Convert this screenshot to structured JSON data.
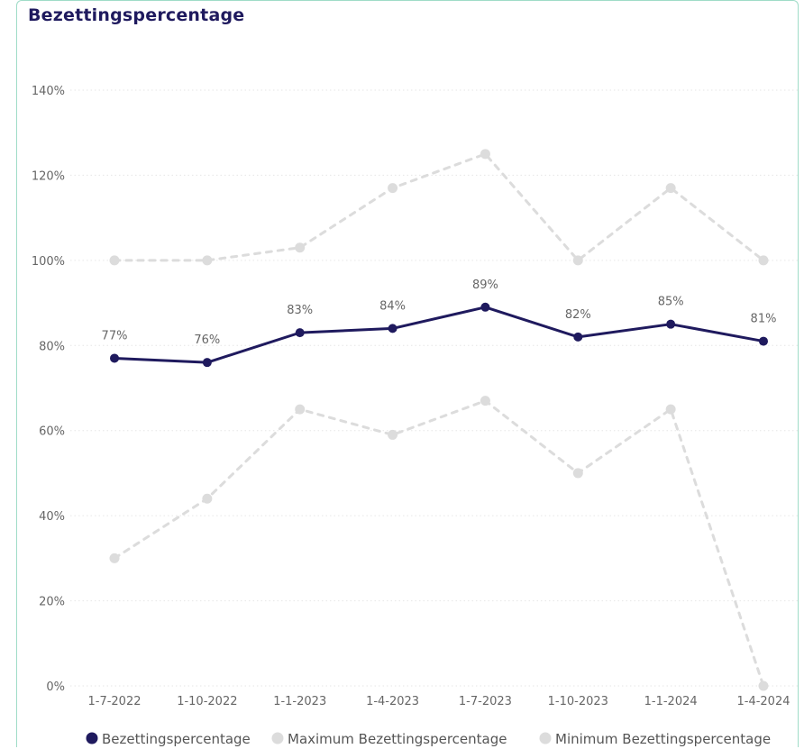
{
  "chart_data": {
    "type": "line",
    "title": "Bezettingspercentage",
    "xlabel": "",
    "ylabel": "",
    "categories": [
      "1-7-2022",
      "1-10-2022",
      "1-1-2023",
      "1-4-2023",
      "1-7-2023",
      "1-10-2023",
      "1-1-2024",
      "1-4-2024"
    ],
    "ylim": [
      0,
      140
    ],
    "yticks": [
      {
        "value": 0,
        "label": "0%"
      },
      {
        "value": 20,
        "label": "20%"
      },
      {
        "value": 40,
        "label": "40%"
      },
      {
        "value": 60,
        "label": "60%"
      },
      {
        "value": 80,
        "label": "80%"
      },
      {
        "value": 100,
        "label": "100%"
      },
      {
        "value": 120,
        "label": "120%"
      },
      {
        "value": 140,
        "label": "140%"
      }
    ],
    "grid": true,
    "legend_position": "bottom-left",
    "series": [
      {
        "name": "Bezettingspercentage",
        "color": "#1f1a5e",
        "style": "solid",
        "values": [
          77,
          76,
          83,
          84,
          89,
          82,
          85,
          81
        ],
        "data_labels": [
          "77%",
          "76%",
          "83%",
          "84%",
          "89%",
          "82%",
          "85%",
          "81%"
        ]
      },
      {
        "name": "Maximum Bezettingspercentage",
        "color": "#dcdcdc",
        "style": "dashed",
        "values": [
          100,
          100,
          103,
          117,
          125,
          100,
          117,
          100
        ]
      },
      {
        "name": "Minimum Bezettingspercentage",
        "color": "#dcdcdc",
        "style": "dashed",
        "values": [
          30,
          44,
          65,
          59,
          67,
          50,
          65,
          0
        ]
      }
    ]
  }
}
